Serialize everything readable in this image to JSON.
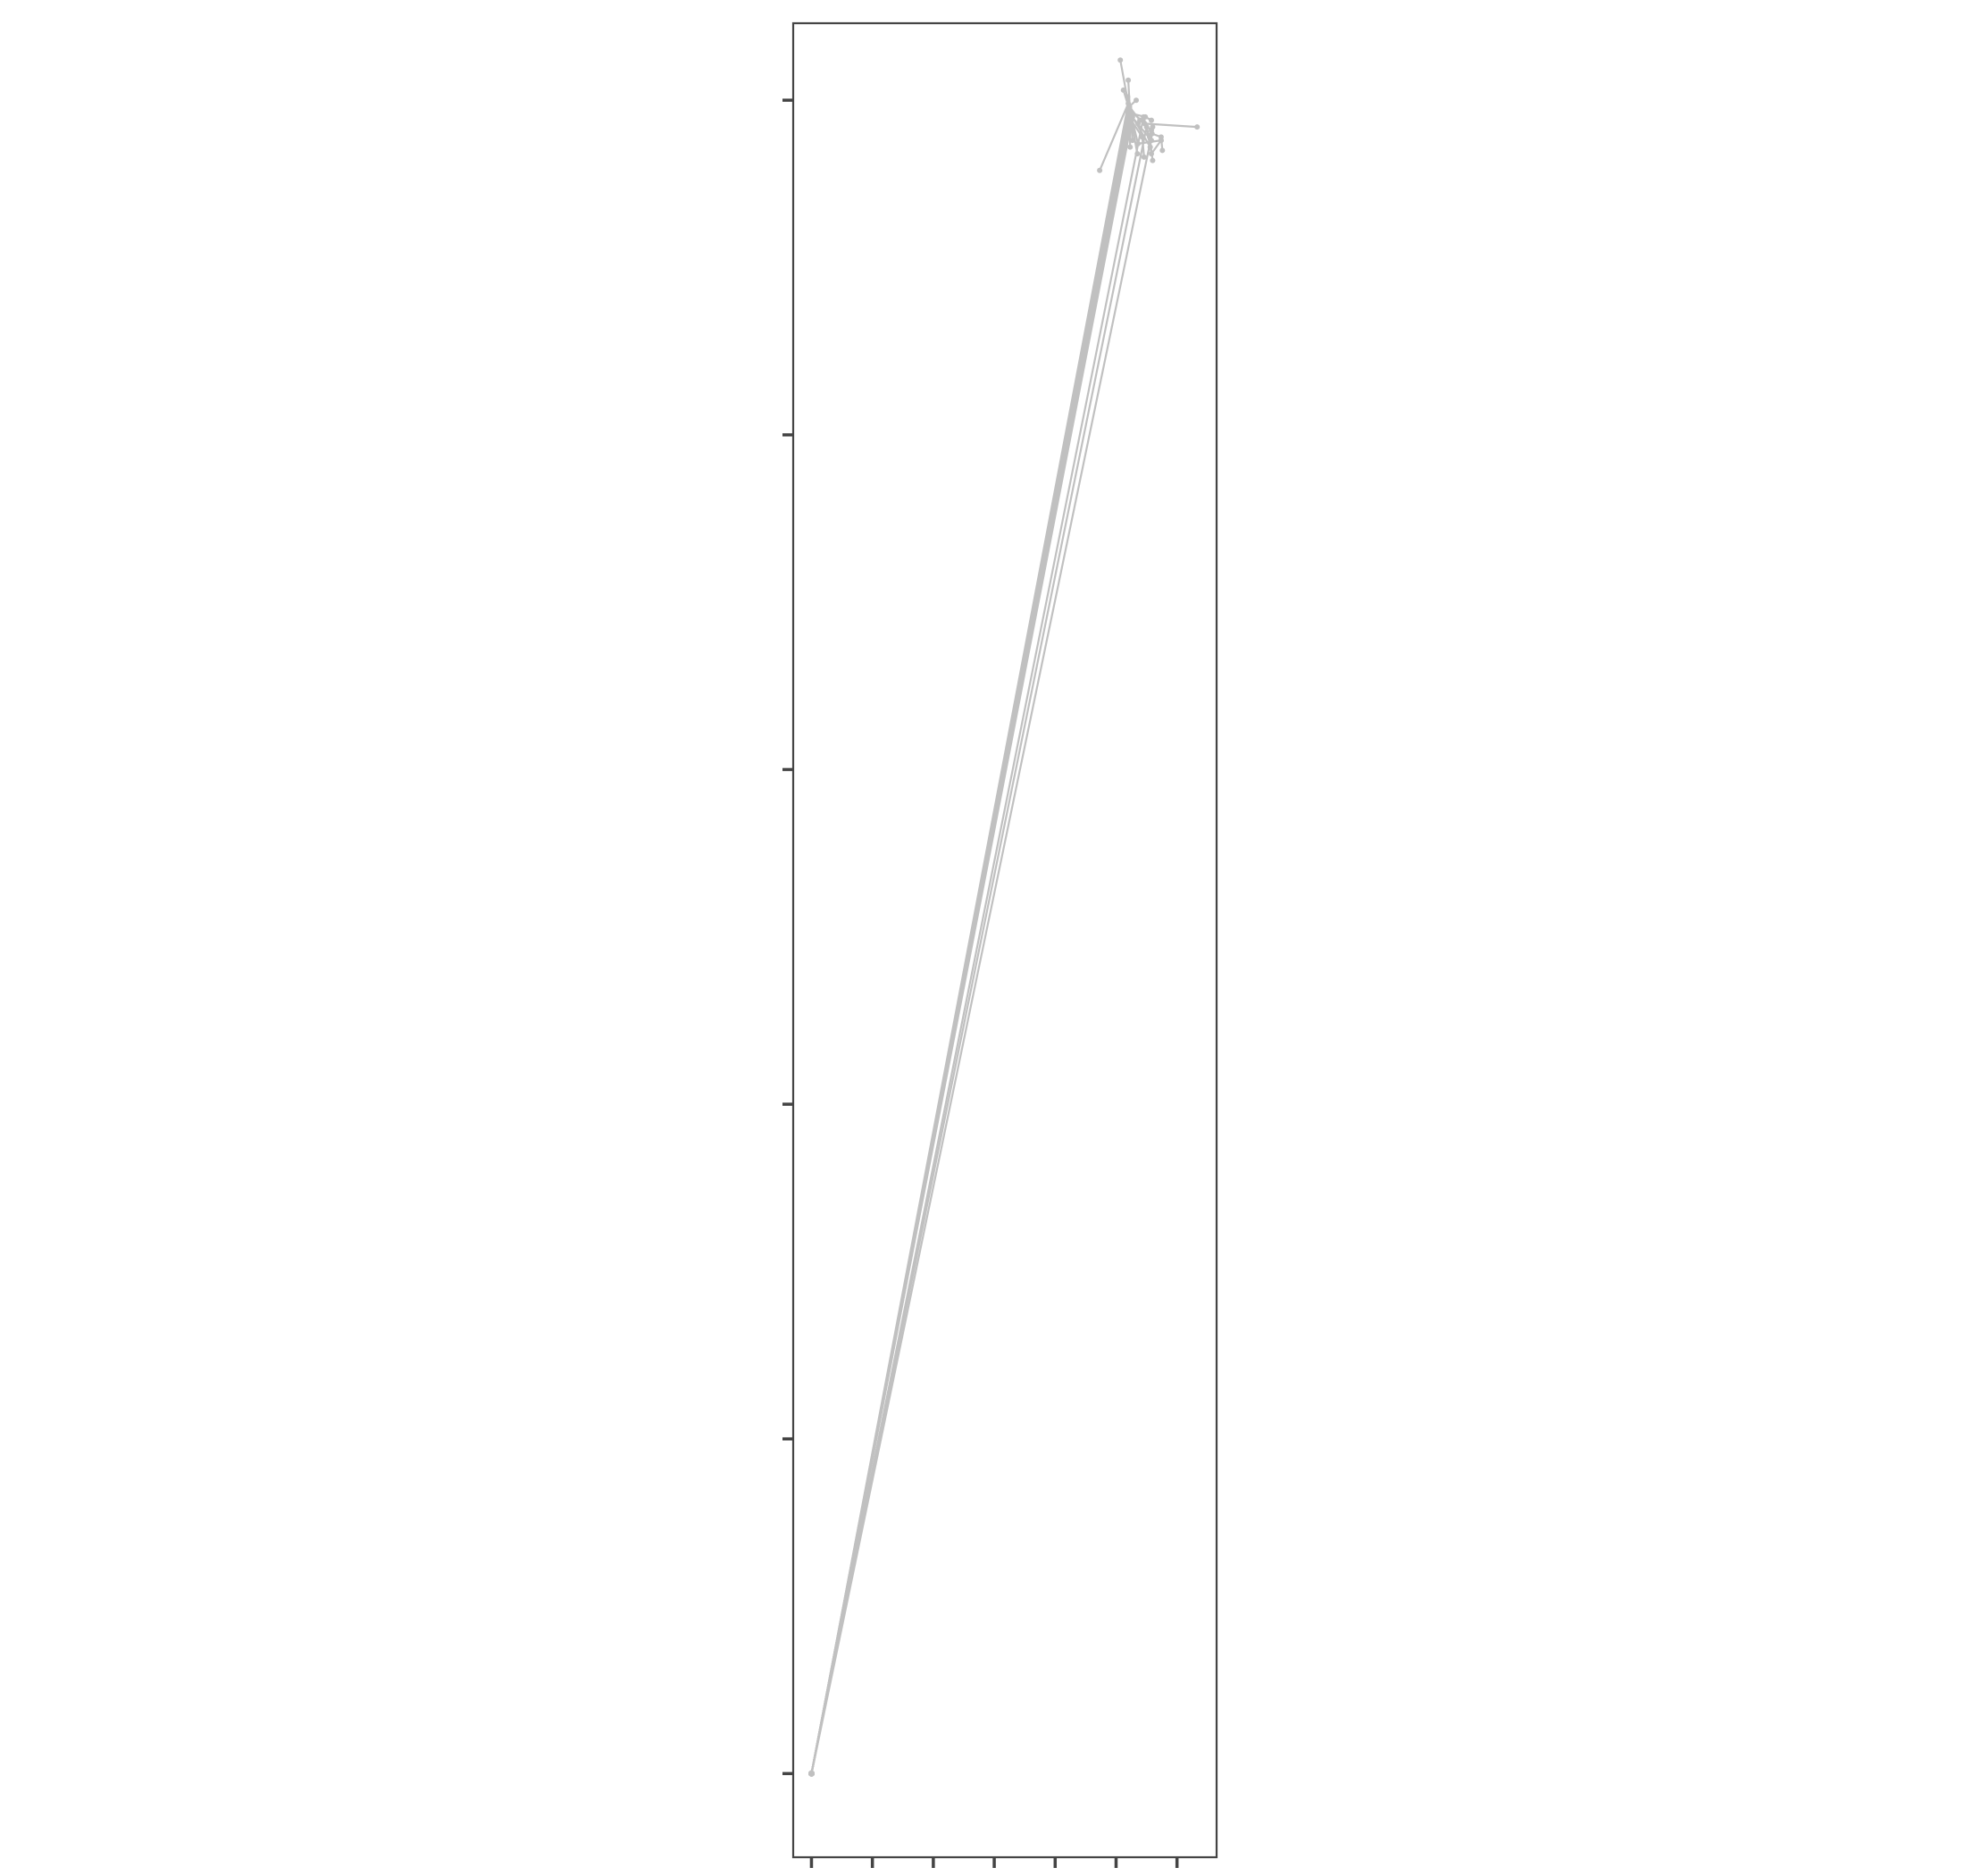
{
  "chart_data": {
    "type": "line",
    "title": "",
    "xlabel": "",
    "ylabel": "",
    "xlim": [
      -0.3,
      6.65
    ],
    "ylim": [
      -0.25,
      5.23
    ],
    "x_ticks": [
      0,
      1,
      2,
      3,
      4,
      5,
      6
    ],
    "y_ticks": [
      0,
      1,
      2,
      3,
      4,
      5
    ],
    "x_tick_labels_shown": false,
    "y_tick_labels_shown": false,
    "grid": false,
    "legend": "none",
    "line_color": "#c0c0c0",
    "frame_color": "#444444",
    "series": [
      {
        "x": [
          0,
          5.22,
          5.23
        ],
        "y": [
          0,
          4.98,
          4.86
        ]
      },
      {
        "x": [
          0,
          5.23,
          5.2
        ],
        "y": [
          0,
          4.96,
          5.06
        ]
      },
      {
        "x": [
          0,
          5.25,
          5.36
        ],
        "y": [
          0,
          4.95,
          4.93
        ]
      },
      {
        "x": [
          0,
          5.21,
          5.19
        ],
        "y": [
          0,
          4.97,
          5.01
        ]
      },
      {
        "x": [
          0,
          5.24,
          5.12
        ],
        "y": [
          0,
          4.96,
          5.03
        ]
      },
      {
        "x": [
          0,
          5.22,
          5.39,
          5.58
        ],
        "y": [
          0,
          4.98,
          4.94,
          4.91
        ]
      },
      {
        "x": [
          0,
          5.2,
          4.73
        ],
        "y": [
          0,
          4.99,
          4.79
        ]
      },
      {
        "x": [
          0,
          5.26,
          5.48,
          5.58
        ],
        "y": [
          0,
          4.96,
          4.95,
          4.94
        ]
      },
      {
        "x": [
          0,
          5.23,
          5.47,
          6.33
        ],
        "y": [
          0,
          4.97,
          4.93,
          4.92
        ]
      },
      {
        "x": [
          0,
          5.24,
          5.35
        ],
        "y": [
          0,
          4.95,
          4.84
        ]
      },
      {
        "x": [
          0,
          5.21,
          5.33
        ],
        "y": [
          0,
          4.98,
          5.0
        ]
      },
      {
        "x": [
          0,
          5.25,
          5.43,
          5.46
        ],
        "y": [
          0,
          4.94,
          4.89,
          4.83
        ]
      },
      {
        "x": [
          0,
          5.22,
          5.07
        ],
        "y": [
          0,
          4.97,
          5.12
        ]
      },
      {
        "x": [
          0,
          5.27,
          5.56,
          5.6
        ],
        "y": [
          0,
          4.95,
          4.86,
          4.92
        ]
      },
      {
        "x": [
          0,
          5.23,
          5.27
        ],
        "y": [
          0,
          4.96,
          4.88
        ]
      },
      {
        "x": [
          0,
          5.5,
          5.58,
          5.74
        ],
        "y": [
          0,
          4.92,
          4.84,
          4.88
        ]
      },
      {
        "x": [
          0,
          5.59,
          5.74,
          5.76
        ],
        "y": [
          0,
          4.9,
          4.89,
          4.85
        ]
      },
      {
        "x": [
          0,
          5.45,
          5.55,
          5.6
        ],
        "y": [
          0,
          4.95,
          4.89,
          4.82
        ]
      },
      {
        "x": [
          0,
          5.24,
          5.36,
          5.74
        ],
        "y": [
          0,
          4.96,
          4.87,
          4.88
        ]
      },
      {
        "x": [
          0,
          5.26,
          5.58
        ],
        "y": [
          0,
          4.95,
          4.88
        ]
      }
    ]
  }
}
